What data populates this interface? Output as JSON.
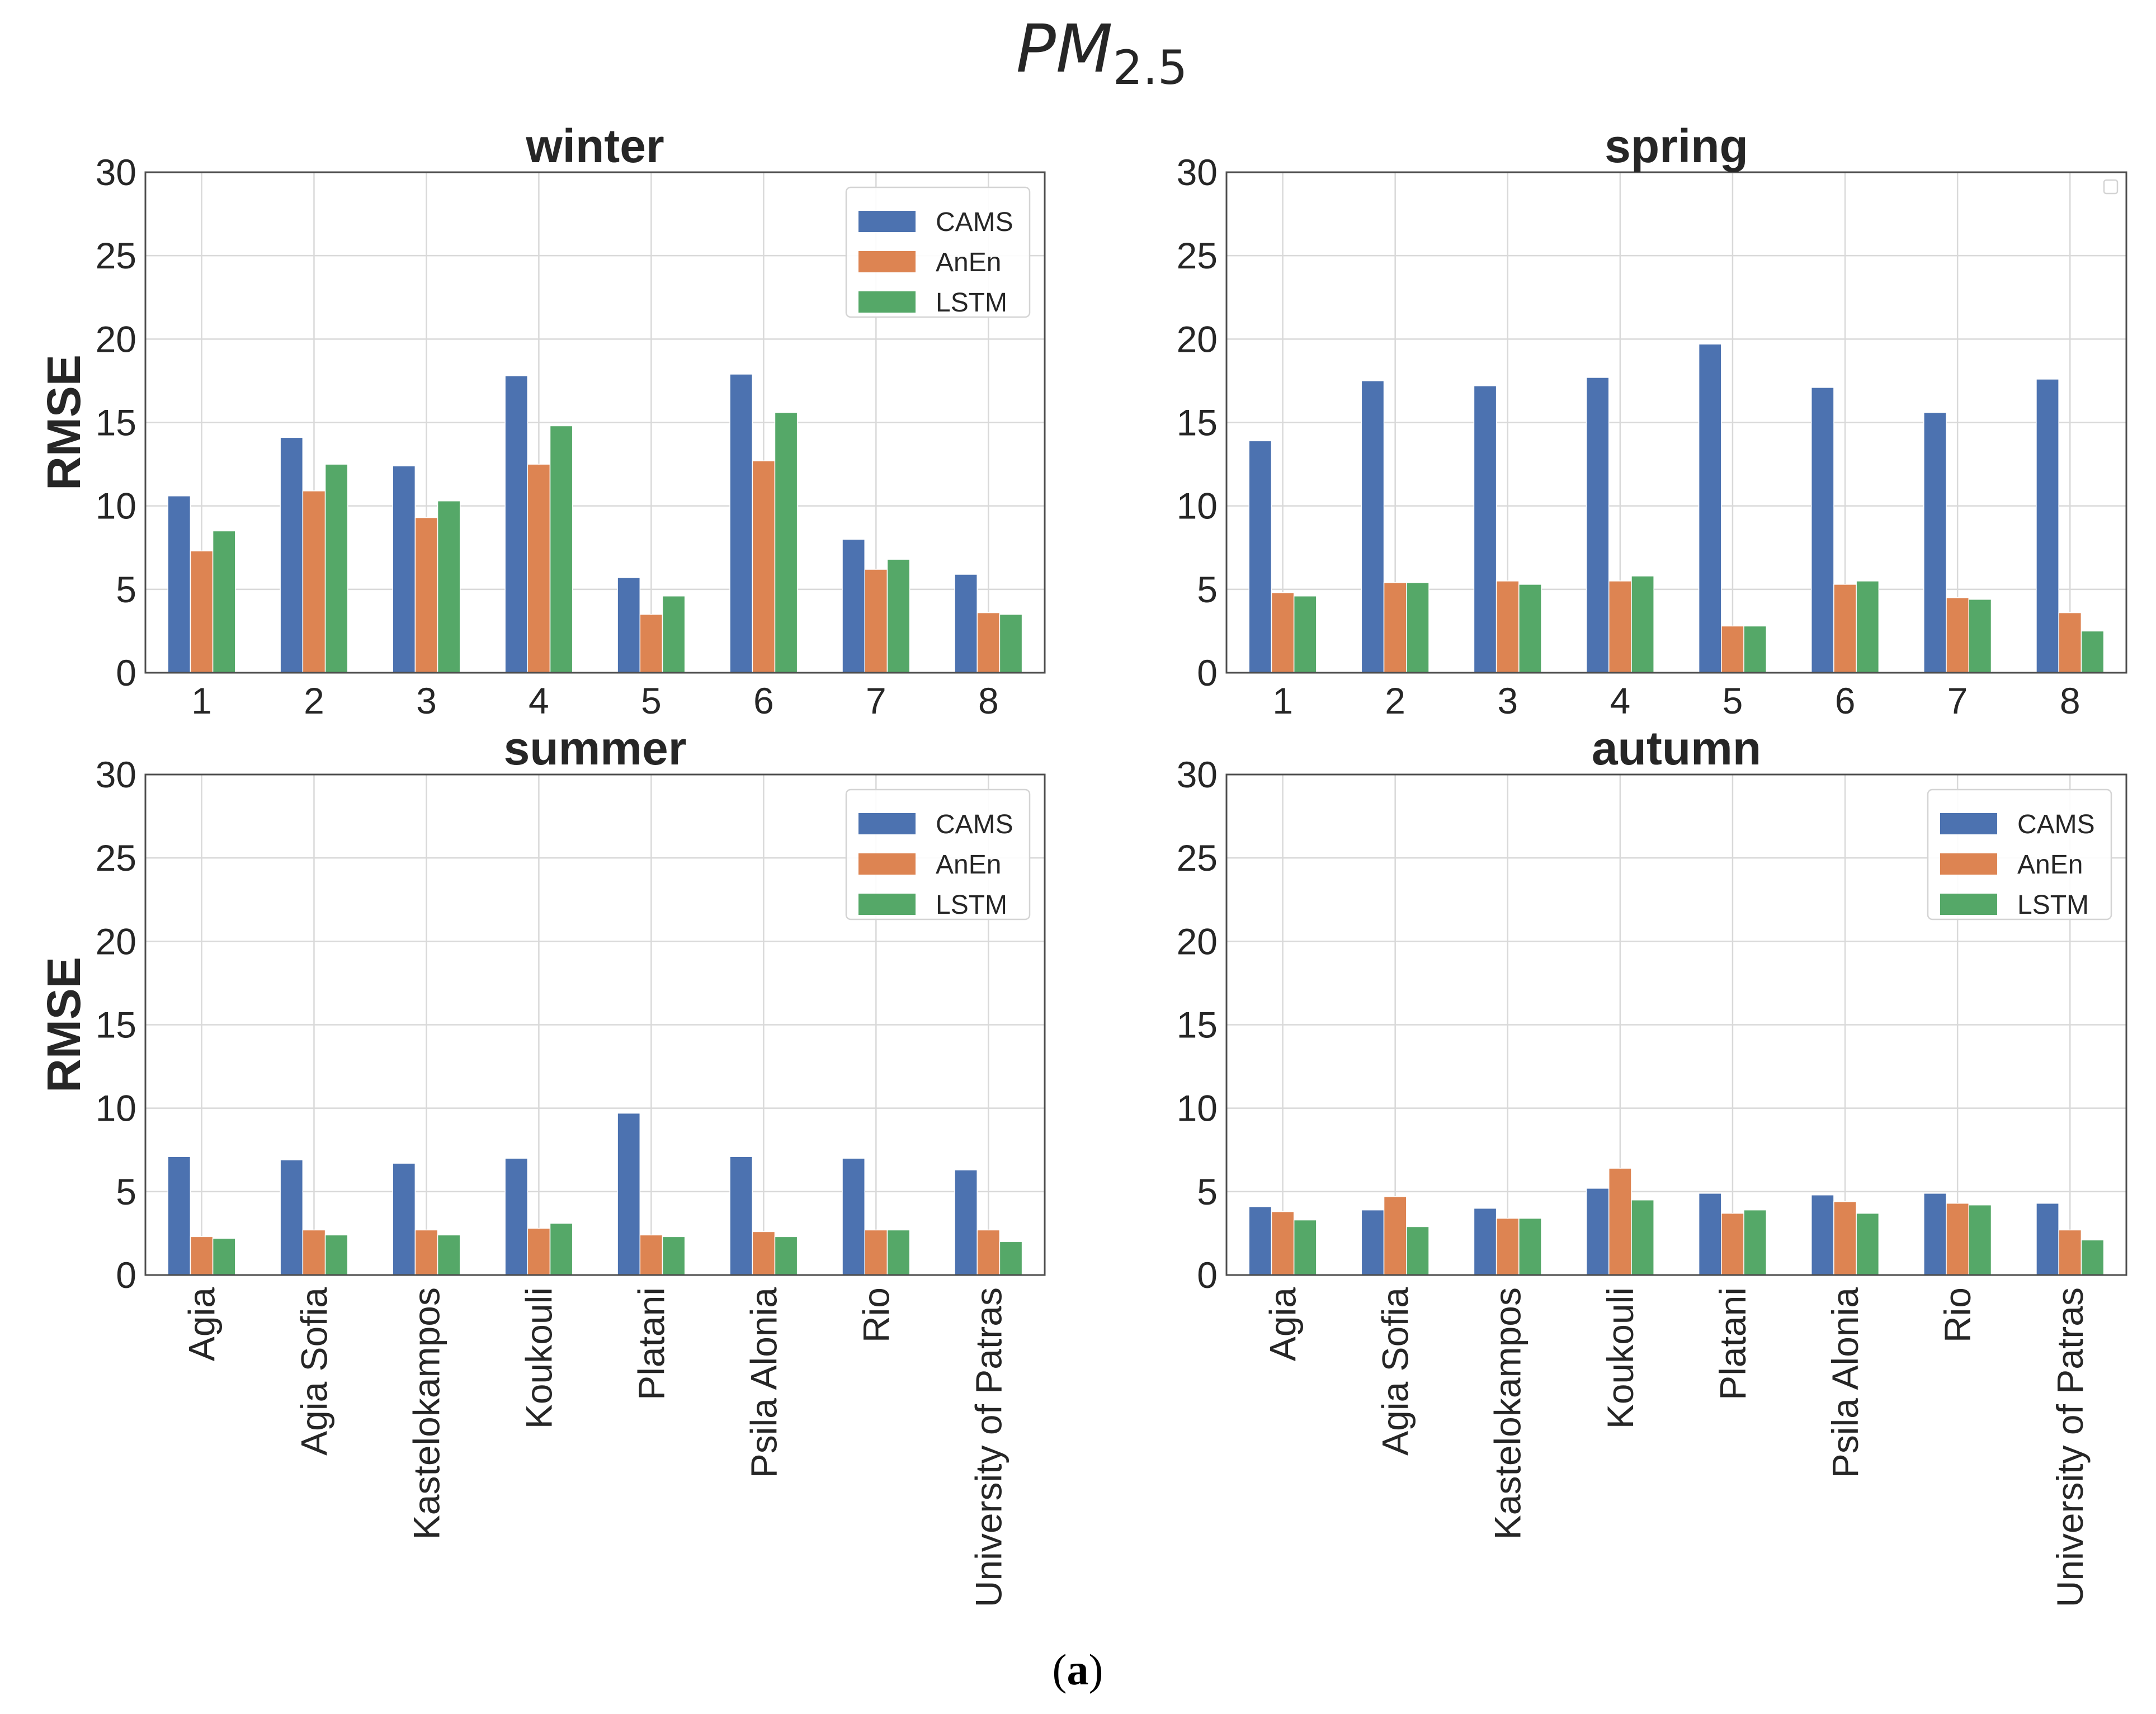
{
  "figure": {
    "title": "PM",
    "title_subscript": "2.5",
    "caption_open": "(",
    "caption_letter": "a",
    "caption_close": ")"
  },
  "colors": {
    "CAMS": "#4c72b0",
    "AnEn": "#dd8452",
    "LSTM": "#55a868"
  },
  "chart_data": [
    {
      "type": "bar",
      "id": "winter",
      "title": "winter",
      "ylabel": "RMSE",
      "xlabel": "",
      "ylim": [
        0,
        30
      ],
      "yticks": [
        0,
        5,
        10,
        15,
        20,
        25,
        30
      ],
      "grid": true,
      "legend_position": "top-right",
      "show_legend": true,
      "categories": [
        "1",
        "2",
        "3",
        "4",
        "5",
        "6",
        "7",
        "8"
      ],
      "series": [
        {
          "name": "CAMS",
          "values": [
            10.6,
            14.1,
            12.4,
            17.8,
            5.7,
            17.9,
            8.0,
            5.9
          ]
        },
        {
          "name": "AnEn",
          "values": [
            7.3,
            10.9,
            9.3,
            12.5,
            3.5,
            12.7,
            6.2,
            3.6
          ]
        },
        {
          "name": "LSTM",
          "values": [
            8.5,
            12.5,
            10.3,
            14.8,
            4.6,
            15.6,
            6.8,
            3.5
          ]
        }
      ]
    },
    {
      "type": "bar",
      "id": "spring",
      "title": "spring",
      "ylabel": "",
      "xlabel": "",
      "ylim": [
        0,
        30
      ],
      "yticks": [
        0,
        5,
        10,
        15,
        20,
        25,
        30
      ],
      "grid": true,
      "legend_position": "top-right",
      "show_legend": false,
      "categories": [
        "1",
        "2",
        "3",
        "4",
        "5",
        "6",
        "7",
        "8"
      ],
      "series": [
        {
          "name": "CAMS",
          "values": [
            13.9,
            17.5,
            17.2,
            17.7,
            19.7,
            17.1,
            15.6,
            17.6
          ]
        },
        {
          "name": "AnEn",
          "values": [
            4.8,
            5.4,
            5.5,
            5.5,
            2.8,
            5.3,
            4.5,
            3.6
          ]
        },
        {
          "name": "LSTM",
          "values": [
            4.6,
            5.4,
            5.3,
            5.8,
            2.8,
            5.5,
            4.4,
            2.5
          ]
        }
      ]
    },
    {
      "type": "bar",
      "id": "summer",
      "title": "summer",
      "ylabel": "RMSE",
      "xlabel": "",
      "ylim": [
        0,
        30
      ],
      "yticks": [
        0,
        5,
        10,
        15,
        20,
        25,
        30
      ],
      "grid": true,
      "legend_position": "top-right",
      "show_legend": true,
      "categories": [
        "Agia",
        "Agia Sofia",
        "Kastelokampos",
        "Koukouli",
        "Platani",
        "Psila Alonia",
        "Rio",
        "University of Patras"
      ],
      "series": [
        {
          "name": "CAMS",
          "values": [
            7.1,
            6.9,
            6.7,
            7.0,
            9.7,
            7.1,
            7.0,
            6.3
          ]
        },
        {
          "name": "AnEn",
          "values": [
            2.3,
            2.7,
            2.7,
            2.8,
            2.4,
            2.6,
            2.7,
            2.7
          ]
        },
        {
          "name": "LSTM",
          "values": [
            2.2,
            2.4,
            2.4,
            3.1,
            2.3,
            2.3,
            2.7,
            2.0
          ]
        }
      ]
    },
    {
      "type": "bar",
      "id": "autumn",
      "title": "autumn",
      "ylabel": "",
      "xlabel": "",
      "ylim": [
        0,
        30
      ],
      "yticks": [
        0,
        5,
        10,
        15,
        20,
        25,
        30
      ],
      "grid": true,
      "legend_position": "top-right",
      "show_legend": true,
      "categories": [
        "Agia",
        "Agia Sofia",
        "Kastelokampos",
        "Koukouli",
        "Platani",
        "Psila Alonia",
        "Rio",
        "University of Patras"
      ],
      "series": [
        {
          "name": "CAMS",
          "values": [
            4.1,
            3.9,
            4.0,
            5.2,
            4.9,
            4.8,
            4.9,
            4.3
          ]
        },
        {
          "name": "AnEn",
          "values": [
            3.8,
            4.7,
            3.4,
            6.4,
            3.7,
            4.4,
            4.3,
            2.7
          ]
        },
        {
          "name": "LSTM",
          "values": [
            3.3,
            2.9,
            3.4,
            4.5,
            3.9,
            3.7,
            4.2,
            2.1
          ]
        }
      ]
    }
  ]
}
